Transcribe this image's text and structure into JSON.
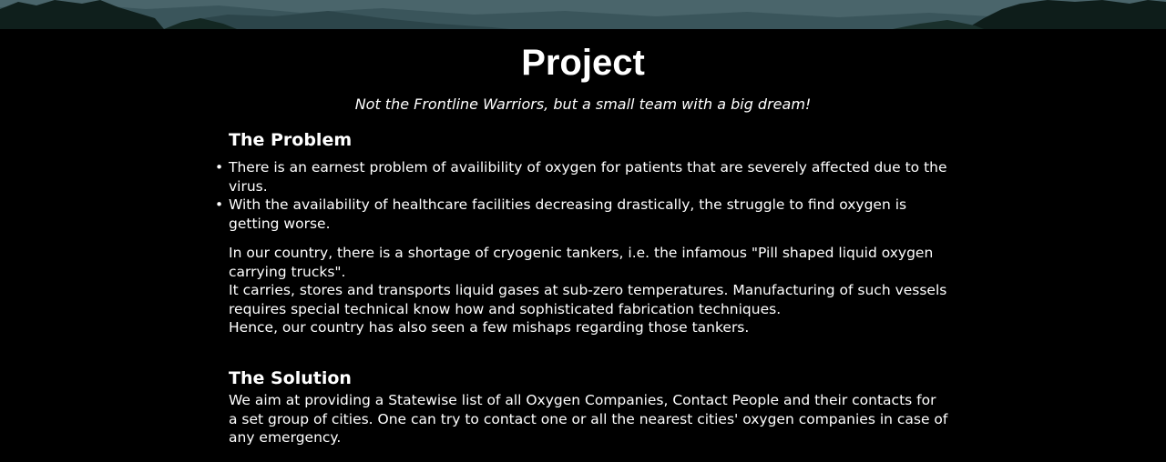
{
  "hero": {
    "colors": {
      "sky": "#4e6a70",
      "mountains": "#2f4a50",
      "trees": "#0d1a18"
    }
  },
  "page": {
    "title": "Project",
    "subtitle": "Not the Frontline Warriors, but a small team with a big dream!"
  },
  "problem": {
    "heading": "The Problem",
    "bullets": [
      "There is an earnest problem of availibility of oxygen for patients that are severely affected due to the virus.",
      "With the availability of healthcare facilities decreasing drastically, the struggle to find oxygen is getting worse."
    ],
    "paragraph": [
      "In our country, there is a shortage of cryogenic tankers, i.e. the infamous \"Pill shaped liquid oxygen carrying trucks\".",
      "It carries, stores and transports liquid gases at sub-zero temperatures. Manufacturing of such vessels requires special technical know how and sophisticated fabrication techniques.",
      "Hence, our country has also seen a few mishaps regarding those tankers."
    ]
  },
  "solution": {
    "heading": "The Solution",
    "text": "We aim at providing a Statewise list of all Oxygen Companies, Contact People and their contacts for a set group of cities. One can try to contact one or all the nearest cities' oxygen companies in case of any emergency."
  }
}
